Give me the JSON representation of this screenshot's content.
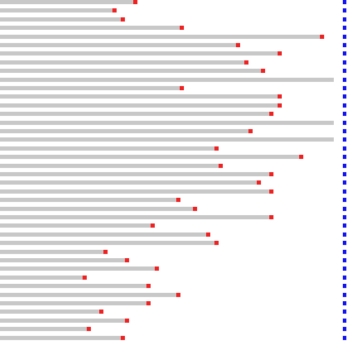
{
  "colors": {
    "bar": "#c8c8c8",
    "marker": "#ee2222",
    "limit": "#1414f0"
  },
  "scale_max": 100,
  "progress_rows": [
    {
      "value": 39.3,
      "has_marker": true
    },
    {
      "value": 33.1,
      "has_marker": true
    },
    {
      "value": 35.6,
      "has_marker": true
    },
    {
      "value": 53.1,
      "has_marker": true
    },
    {
      "value": 94.5,
      "has_marker": true
    },
    {
      "value": 69.6,
      "has_marker": true
    },
    {
      "value": 82.0,
      "has_marker": true
    },
    {
      "value": 72.1,
      "has_marker": true
    },
    {
      "value": 77.0,
      "has_marker": true
    },
    {
      "value": 98.6,
      "has_marker": false
    },
    {
      "value": 53.1,
      "has_marker": true
    },
    {
      "value": 82.0,
      "has_marker": true
    },
    {
      "value": 82.0,
      "has_marker": true
    },
    {
      "value": 79.5,
      "has_marker": true
    },
    {
      "value": 98.6,
      "has_marker": false
    },
    {
      "value": 73.3,
      "has_marker": true
    },
    {
      "value": 98.6,
      "has_marker": false
    },
    {
      "value": 63.4,
      "has_marker": true
    },
    {
      "value": 88.3,
      "has_marker": true
    },
    {
      "value": 64.6,
      "has_marker": true
    },
    {
      "value": 79.5,
      "has_marker": true
    },
    {
      "value": 75.8,
      "has_marker": true
    },
    {
      "value": 79.5,
      "has_marker": true
    },
    {
      "value": 52.0,
      "has_marker": true
    },
    {
      "value": 57.0,
      "has_marker": true
    },
    {
      "value": 79.5,
      "has_marker": true
    },
    {
      "value": 44.4,
      "has_marker": true
    },
    {
      "value": 60.9,
      "has_marker": true
    },
    {
      "value": 63.4,
      "has_marker": true
    },
    {
      "value": 30.6,
      "has_marker": true
    },
    {
      "value": 36.8,
      "has_marker": true
    },
    {
      "value": 45.6,
      "has_marker": true
    },
    {
      "value": 24.4,
      "has_marker": true
    },
    {
      "value": 43.2,
      "has_marker": true
    },
    {
      "value": 52.0,
      "has_marker": true
    },
    {
      "value": 43.2,
      "has_marker": true
    },
    {
      "value": 29.4,
      "has_marker": true
    },
    {
      "value": 36.8,
      "has_marker": true
    },
    {
      "value": 25.6,
      "has_marker": true
    },
    {
      "value": 35.6,
      "has_marker": true
    }
  ],
  "limit_line": {
    "count": 40
  }
}
